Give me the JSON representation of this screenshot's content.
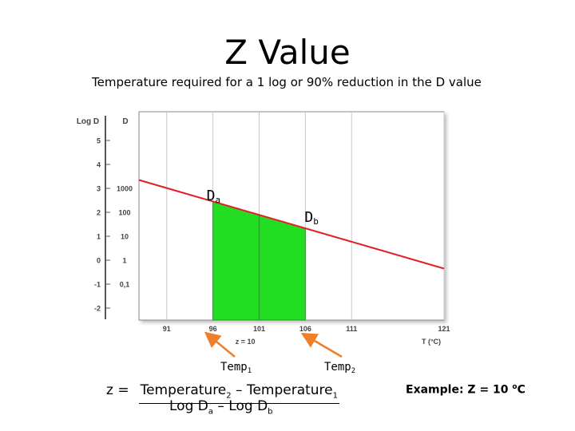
{
  "slide": {
    "title": "Z Value",
    "subtitle": "Temperature required for a 1 log or 90% reduction in the D value"
  },
  "chart_data": {
    "type": "line",
    "axis_labels": {
      "logd": "Log D",
      "d": "D",
      "z": "z = 10",
      "t": "T (°C)"
    },
    "logd_ticks": [
      "5",
      "4",
      "3",
      "2",
      "1",
      "0",
      "-1",
      "-2"
    ],
    "d_ticks": [
      "1000",
      "100",
      "10",
      "1",
      "0,1"
    ],
    "x_ticks": [
      "91",
      "96",
      "101",
      "106",
      "111",
      "121"
    ],
    "xlim": [
      88,
      121
    ],
    "ylim": [
      -2.5,
      6.2
    ],
    "grid": true,
    "line": {
      "x": [
        88,
        121
      ],
      "y": [
        3.35,
        -0.35
      ],
      "color": "#e31e24"
    },
    "shaded_region": {
      "x_from": 96,
      "x_to": 106,
      "color": "#22dd22"
    },
    "point_a": {
      "label": "D",
      "sub": "a",
      "x": 96
    },
    "point_b": {
      "label": "D",
      "sub": "b",
      "x": 106
    },
    "temp1": {
      "label": "Temp",
      "sub": "1",
      "x": 96
    },
    "temp2": {
      "label": "Temp",
      "sub": "2",
      "x": 106
    },
    "arrow_color": "#f07f2c"
  },
  "formula": {
    "lhs": "z =",
    "num_a": "Temperature",
    "num_a_sub": "2",
    "num_mid": " – Temperature",
    "num_b_sub": "1",
    "den_a": "Log D",
    "den_a_sub": "a",
    "den_mid": " – Log D",
    "den_b_sub": "b"
  },
  "example": {
    "text": "Example: Z = 10 ",
    "sup": "o",
    "unit": "C"
  }
}
